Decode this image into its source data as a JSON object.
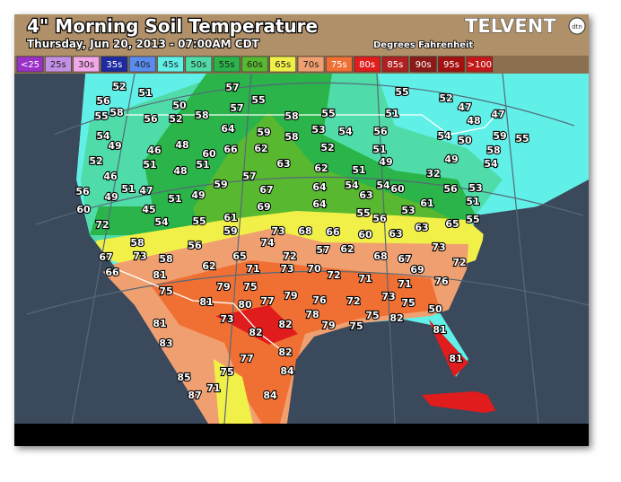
{
  "header": {
    "title": "4\" Morning Soil Temperature",
    "subtitle": "Thursday, Jun 20, 2013 - 07:00AM CDT",
    "units": "Degrees Fahrenheit",
    "logo": "TELVENT",
    "logo_badge": "dtn"
  },
  "legend": [
    {
      "label": "<25",
      "color": "#9a30c8"
    },
    {
      "label": "25s",
      "color": "#c490e6"
    },
    {
      "label": "30s",
      "color": "#f2a8e8"
    },
    {
      "label": "35s",
      "color": "#1e2aa0"
    },
    {
      "label": "40s",
      "color": "#5a8cf0"
    },
    {
      "label": "45s",
      "color": "#60f0e8"
    },
    {
      "label": "50s",
      "color": "#50dca8"
    },
    {
      "label": "55s",
      "color": "#2ab44a"
    },
    {
      "label": "60s",
      "color": "#58b830"
    },
    {
      "label": "65s",
      "color": "#f0f048"
    },
    {
      "label": "70s",
      "color": "#f0a070"
    },
    {
      "label": "75s",
      "color": "#f07034"
    },
    {
      "label": "80s",
      "color": "#e01c1c"
    },
    {
      "label": "85s",
      "color": "#b02020"
    },
    {
      "label": "90s",
      "color": "#8c1818"
    },
    {
      "label": "95s",
      "color": "#a41010"
    },
    {
      "label": ">100",
      "color": "#c41818"
    }
  ],
  "map": {
    "station_values": [
      52,
      51,
      57,
      55,
      55,
      52,
      47,
      56,
      58,
      50,
      57,
      58,
      55,
      51,
      48,
      47,
      58,
      56,
      52,
      55,
      54,
      64,
      59,
      58,
      53,
      54,
      56,
      54,
      50,
      59,
      55,
      49,
      46,
      48,
      60,
      66,
      62,
      52,
      51,
      58,
      52,
      51,
      51,
      63,
      62,
      51,
      49,
      32,
      49,
      54,
      46,
      48,
      57,
      67,
      64,
      54,
      54,
      63,
      60,
      56,
      53,
      51,
      47,
      59,
      56,
      49,
      51,
      49,
      64,
      69,
      61,
      51,
      60,
      45,
      55,
      53,
      72,
      54,
      55,
      61,
      59,
      68,
      56,
      63,
      65,
      55,
      73,
      66,
      60,
      63,
      74,
      58,
      56,
      72,
      57,
      62,
      73,
      67,
      73,
      58,
      65,
      71,
      73,
      70,
      72,
      68,
      67,
      72,
      66,
      81,
      62,
      69,
      71,
      76,
      75,
      79,
      75,
      79,
      73,
      71,
      75,
      81,
      80,
      77,
      76,
      72,
      50,
      78,
      75,
      82,
      81,
      73,
      82,
      79,
      75,
      81,
      82,
      83,
      82,
      77,
      81,
      84,
      75,
      85,
      87,
      71,
      84
    ]
  }
}
